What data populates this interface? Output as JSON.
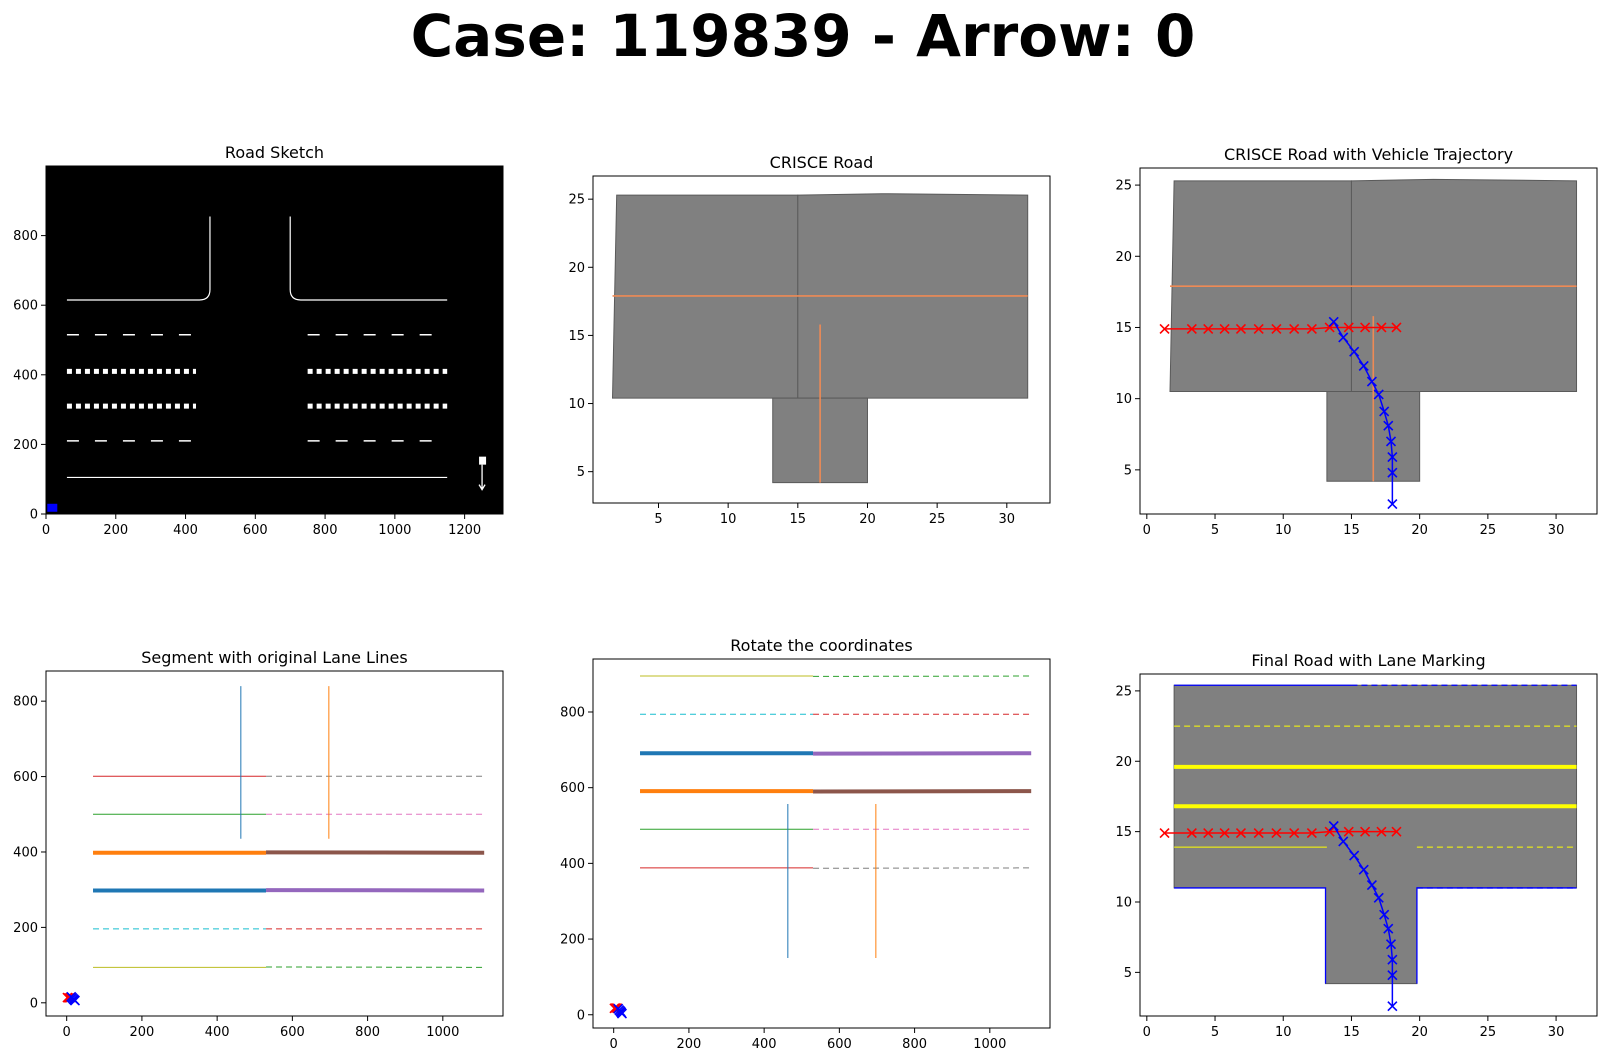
{
  "figure": {
    "title": "Case: 119839 - Arrow: 0",
    "colors": {
      "road": "#808080",
      "road_edge": "#5a5a5a",
      "orange_line": "#ee8a55",
      "red_traj": "#ff0000",
      "blue_traj": "#0000ff",
      "yellow_marking": "#ffff00",
      "boundary": "#0000ff",
      "sketch_background": "#000000",
      "sketch_line": "#ffffff"
    }
  },
  "chart_data": [
    {
      "type": "image",
      "title": "Road Sketch",
      "xlim": [
        0,
        1310
      ],
      "ylim": [
        0,
        1000
      ],
      "xticks": [
        0,
        200,
        400,
        600,
        800,
        1000,
        1200
      ],
      "yticks": [
        0,
        200,
        400,
        600,
        800
      ],
      "features": {
        "stop_lines": [
          {
            "x": [
              60,
              1150
            ],
            "y": 105
          }
        ],
        "curbs": [
          {
            "x": [
              60,
              440
            ],
            "y": 615,
            "curve_to": [
              470,
              645
            ],
            "top": 855
          },
          {
            "x": [
              730,
              1150
            ],
            "y": 615,
            "curve_to": [
              700,
              645
            ],
            "top": 855
          }
        ],
        "dashed_rows": [
          {
            "y": 515,
            "x_ranges": [
              [
                60,
                430
              ],
              [
                750,
                1150
              ]
            ]
          },
          {
            "y": 410,
            "x_ranges": [
              [
                60,
                430
              ],
              [
                750,
                1150
              ]
            ],
            "thick": true
          },
          {
            "y": 310,
            "x_ranges": [
              [
                60,
                430
              ],
              [
                750,
                1150
              ]
            ],
            "thick": true
          },
          {
            "y": 210,
            "x_ranges": [
              [
                60,
                430
              ],
              [
                750,
                1150
              ]
            ]
          }
        ],
        "arrow_marker": {
          "x": 1250,
          "y": 70
        },
        "blue_marker": {
          "x": 18,
          "y": 15
        }
      }
    },
    {
      "type": "polygon",
      "title": "CRISCE Road",
      "xlim": [
        0.3,
        33.1
      ],
      "ylim": [
        2.7,
        26.7
      ],
      "xticks": [
        5,
        10,
        15,
        20,
        25,
        30
      ],
      "yticks": [
        5,
        10,
        15,
        20,
        25
      ],
      "polygons": [
        [
          [
            2.0,
            25.3
          ],
          [
            15.0,
            25.3
          ],
          [
            15.0,
            10.4
          ],
          [
            1.7,
            10.4
          ]
        ],
        [
          [
            15.0,
            25.3
          ],
          [
            21.0,
            25.4
          ],
          [
            31.5,
            25.3
          ],
          [
            31.5,
            10.4
          ],
          [
            21.0,
            10.4
          ],
          [
            15.0,
            10.4
          ]
        ],
        [
          [
            13.2,
            10.4
          ],
          [
            20.0,
            10.4
          ],
          [
            20.0,
            4.2
          ],
          [
            13.2,
            4.2
          ]
        ]
      ],
      "lines": [
        {
          "x": [
            1.7,
            31.5
          ],
          "y": [
            17.9,
            17.9
          ]
        },
        {
          "x": [
            16.6,
            16.6
          ],
          "y": [
            4.2,
            15.8
          ]
        }
      ]
    },
    {
      "type": "trajectory",
      "title": "CRISCE Road with Vehicle Trajectory",
      "xlim": [
        -0.5,
        33.0
      ],
      "ylim": [
        1.9,
        26.2
      ],
      "xticks": [
        0,
        5,
        10,
        15,
        20,
        25,
        30
      ],
      "yticks": [
        5,
        10,
        15,
        20,
        25
      ],
      "polygons": [
        [
          [
            2.0,
            25.3
          ],
          [
            15.0,
            25.3
          ],
          [
            15.0,
            10.5
          ],
          [
            1.7,
            10.5
          ]
        ],
        [
          [
            15.0,
            25.3
          ],
          [
            21.0,
            25.4
          ],
          [
            31.5,
            25.3
          ],
          [
            31.5,
            10.5
          ],
          [
            21.0,
            10.5
          ],
          [
            15.0,
            10.5
          ]
        ],
        [
          [
            13.2,
            10.5
          ],
          [
            20.0,
            10.5
          ],
          [
            20.0,
            4.2
          ],
          [
            13.2,
            4.2
          ]
        ]
      ],
      "lines": [
        {
          "x": [
            1.7,
            31.5
          ],
          "y": [
            17.9,
            17.9
          ]
        },
        {
          "x": [
            16.6,
            16.6
          ],
          "y": [
            4.2,
            15.8
          ]
        }
      ],
      "series": [
        {
          "color": "red",
          "x": [
            1.3,
            3.3,
            4.5,
            5.7,
            6.9,
            8.2,
            9.5,
            10.8,
            12.1,
            13.4,
            14.8,
            16.0,
            17.2,
            18.3
          ],
          "y": [
            14.9,
            14.9,
            14.9,
            14.9,
            14.9,
            14.9,
            14.9,
            14.9,
            14.9,
            15.0,
            15.0,
            15.0,
            15.0,
            15.0
          ]
        },
        {
          "color": "blue",
          "x": [
            13.7,
            14.4,
            15.2,
            15.9,
            16.5,
            17.0,
            17.4,
            17.7,
            17.9,
            18.0,
            18.0,
            18.0
          ],
          "y": [
            15.4,
            14.3,
            13.3,
            12.3,
            11.2,
            10.3,
            9.1,
            8.1,
            7.0,
            5.9,
            4.8,
            2.6
          ]
        }
      ]
    },
    {
      "type": "line",
      "title": "Segment with original Lane Lines",
      "xlim": [
        -55,
        1160
      ],
      "ylim": [
        -35,
        880
      ],
      "xticks": [
        0,
        200,
        400,
        600,
        800,
        1000
      ],
      "yticks": [
        0,
        200,
        400,
        600,
        800
      ],
      "series": [
        {
          "color": "#d62728",
          "style": "solid",
          "width": 1,
          "x": [
            70,
            530
          ],
          "y": [
            601,
            601
          ]
        },
        {
          "color": "#7f7f7f",
          "style": "dashed",
          "width": 1,
          "x": [
            530,
            1110
          ],
          "y": [
            601,
            601
          ]
        },
        {
          "color": "#2ca02c",
          "style": "solid",
          "width": 1,
          "x": [
            70,
            530
          ],
          "y": [
            500,
            500
          ]
        },
        {
          "color": "#e377c2",
          "style": "dashed",
          "width": 1,
          "x": [
            530,
            1110
          ],
          "y": [
            500,
            500
          ]
        },
        {
          "color": "#ff7f0e",
          "style": "solid",
          "width": 4,
          "x": [
            70,
            530
          ],
          "y": [
            398,
            398
          ]
        },
        {
          "color": "#8c564b",
          "style": "solid",
          "width": 4,
          "x": [
            530,
            1110
          ],
          "y": [
            399,
            398
          ]
        },
        {
          "color": "#1f77b4",
          "style": "solid",
          "width": 4,
          "x": [
            70,
            530
          ],
          "y": [
            298,
            298
          ]
        },
        {
          "color": "#9467bd",
          "style": "solid",
          "width": 4,
          "x": [
            530,
            1110
          ],
          "y": [
            299,
            298
          ]
        },
        {
          "color": "#17becf",
          "style": "dashed",
          "width": 1,
          "x": [
            70,
            530
          ],
          "y": [
            196,
            196
          ]
        },
        {
          "color": "#d62728",
          "style": "dashed",
          "width": 1,
          "x": [
            530,
            1110
          ],
          "y": [
            196,
            196
          ]
        },
        {
          "color": "#bcbd22",
          "style": "solid",
          "width": 1,
          "x": [
            70,
            530
          ],
          "y": [
            94,
            94
          ]
        },
        {
          "color": "#2ca02c",
          "style": "dashed",
          "width": 1,
          "x": [
            530,
            1110
          ],
          "y": [
            95,
            94
          ]
        },
        {
          "color": "#1f77b4",
          "style": "solid",
          "width": 1,
          "x": [
            463,
            463
          ],
          "y": [
            435,
            840
          ]
        },
        {
          "color": "#ff7f0e",
          "style": "solid",
          "width": 1,
          "x": [
            697,
            697
          ],
          "y": [
            435,
            840
          ]
        }
      ],
      "markers": [
        {
          "color": "red",
          "x": [
            2,
            6,
            10
          ],
          "y": [
            14,
            13,
            14
          ]
        },
        {
          "color": "blue",
          "x": [
            12,
            15,
            18,
            20,
            22
          ],
          "y": [
            16,
            13,
            10,
            8,
            6
          ]
        }
      ]
    },
    {
      "type": "line",
      "title": "Rotate the coordinates",
      "xlim": [
        -55,
        1160
      ],
      "ylim": [
        -35,
        940
      ],
      "xticks": [
        0,
        200,
        400,
        600,
        800,
        1000
      ],
      "yticks": [
        0,
        200,
        400,
        600,
        800
      ],
      "series": [
        {
          "color": "#bcbd22",
          "style": "solid",
          "width": 1,
          "x": [
            70,
            530
          ],
          "y": [
            895,
            895
          ]
        },
        {
          "color": "#2ca02c",
          "style": "dashed",
          "width": 1,
          "x": [
            530,
            1110
          ],
          "y": [
            894,
            895
          ]
        },
        {
          "color": "#17becf",
          "style": "dashed",
          "width": 1,
          "x": [
            70,
            530
          ],
          "y": [
            794,
            794
          ]
        },
        {
          "color": "#d62728",
          "style": "dashed",
          "width": 1,
          "x": [
            530,
            1110
          ],
          "y": [
            794,
            794
          ]
        },
        {
          "color": "#1f77b4",
          "style": "solid",
          "width": 4,
          "x": [
            70,
            530
          ],
          "y": [
            691,
            691
          ]
        },
        {
          "color": "#9467bd",
          "style": "solid",
          "width": 4,
          "x": [
            530,
            1110
          ],
          "y": [
            690,
            691
          ]
        },
        {
          "color": "#ff7f0e",
          "style": "solid",
          "width": 4,
          "x": [
            70,
            530
          ],
          "y": [
            591,
            591
          ]
        },
        {
          "color": "#8c564b",
          "style": "solid",
          "width": 4,
          "x": [
            530,
            1110
          ],
          "y": [
            590,
            591
          ]
        },
        {
          "color": "#2ca02c",
          "style": "solid",
          "width": 1,
          "x": [
            70,
            530
          ],
          "y": [
            490,
            490
          ]
        },
        {
          "color": "#e377c2",
          "style": "dashed",
          "width": 1,
          "x": [
            530,
            1110
          ],
          "y": [
            490,
            490
          ]
        },
        {
          "color": "#d62728",
          "style": "solid",
          "width": 1,
          "x": [
            70,
            530
          ],
          "y": [
            388,
            388
          ]
        },
        {
          "color": "#7f7f7f",
          "style": "dashed",
          "width": 1,
          "x": [
            530,
            1110
          ],
          "y": [
            387,
            388
          ]
        },
        {
          "color": "#1f77b4",
          "style": "solid",
          "width": 1,
          "x": [
            463,
            463
          ],
          "y": [
            150,
            557
          ]
        },
        {
          "color": "#ff7f0e",
          "style": "solid",
          "width": 1,
          "x": [
            697,
            697
          ],
          "y": [
            150,
            557
          ]
        }
      ],
      "markers": [
        {
          "color": "red",
          "x": [
            2,
            6,
            10
          ],
          "y": [
            17,
            18,
            17
          ]
        },
        {
          "color": "blue",
          "x": [
            12,
            15,
            18,
            20,
            22
          ],
          "y": [
            16,
            12,
            9,
            6,
            3
          ]
        }
      ]
    },
    {
      "type": "polygon",
      "title": "Final Road with Lane Marking",
      "xlim": [
        -0.5,
        33.0
      ],
      "ylim": [
        1.9,
        26.2
      ],
      "xticks": [
        0,
        5,
        10,
        15,
        20,
        25,
        30
      ],
      "yticks": [
        5,
        10,
        15,
        20,
        25
      ],
      "polygons": [
        [
          [
            2.0,
            25.4
          ],
          [
            31.5,
            25.4
          ],
          [
            31.5,
            11.0
          ],
          [
            19.8,
            11.0
          ],
          [
            19.8,
            4.2
          ],
          [
            13.1,
            4.2
          ],
          [
            13.1,
            11.0
          ],
          [
            2.0,
            11.0
          ]
        ]
      ],
      "boundaries": [
        {
          "style": "solid",
          "x": [
            2.0,
            15.0
          ],
          "y": [
            25.4,
            25.4
          ]
        },
        {
          "style": "dashed",
          "x": [
            15.0,
            31.5
          ],
          "y": [
            25.4,
            25.4
          ]
        },
        {
          "style": "solid",
          "x": [
            2.0,
            13.1,
            13.1
          ],
          "y": [
            11.0,
            11.0,
            4.2
          ]
        },
        {
          "style": "solid",
          "x": [
            19.8,
            19.8,
            31.5
          ],
          "y": [
            4.2,
            11.0,
            11.0
          ]
        },
        {
          "style": "dashed",
          "x": [
            19.8,
            31.5
          ],
          "y": [
            11.0,
            11.0
          ]
        }
      ],
      "markings": [
        {
          "style": "dashed",
          "width": 1,
          "x": [
            2.0,
            31.5
          ],
          "y": [
            22.5,
            22.5
          ]
        },
        {
          "style": "solid",
          "width": 4,
          "x": [
            2.0,
            31.5
          ],
          "y": [
            19.6,
            19.6
          ]
        },
        {
          "style": "solid",
          "width": 4,
          "x": [
            2.0,
            31.5
          ],
          "y": [
            16.8,
            16.8
          ]
        },
        {
          "style": "solid",
          "width": 1,
          "x": [
            2.0,
            13.2
          ],
          "y": [
            13.9,
            13.9
          ]
        },
        {
          "style": "dashed",
          "width": 1,
          "x": [
            19.8,
            31.5
          ],
          "y": [
            13.9,
            13.9
          ]
        }
      ],
      "series": [
        {
          "color": "red",
          "x": [
            1.3,
            3.3,
            4.5,
            5.7,
            6.9,
            8.2,
            9.5,
            10.8,
            12.1,
            13.4,
            14.8,
            16.0,
            17.2,
            18.3
          ],
          "y": [
            14.9,
            14.9,
            14.9,
            14.9,
            14.9,
            14.9,
            14.9,
            14.9,
            14.9,
            15.0,
            15.0,
            15.0,
            15.0,
            15.0
          ]
        },
        {
          "color": "blue",
          "x": [
            13.7,
            14.4,
            15.2,
            15.9,
            16.5,
            17.0,
            17.4,
            17.7,
            17.9,
            18.0,
            18.0,
            18.0
          ],
          "y": [
            15.4,
            14.3,
            13.3,
            12.3,
            11.2,
            10.3,
            9.1,
            8.1,
            7.0,
            5.9,
            4.8,
            2.6
          ]
        }
      ]
    }
  ]
}
